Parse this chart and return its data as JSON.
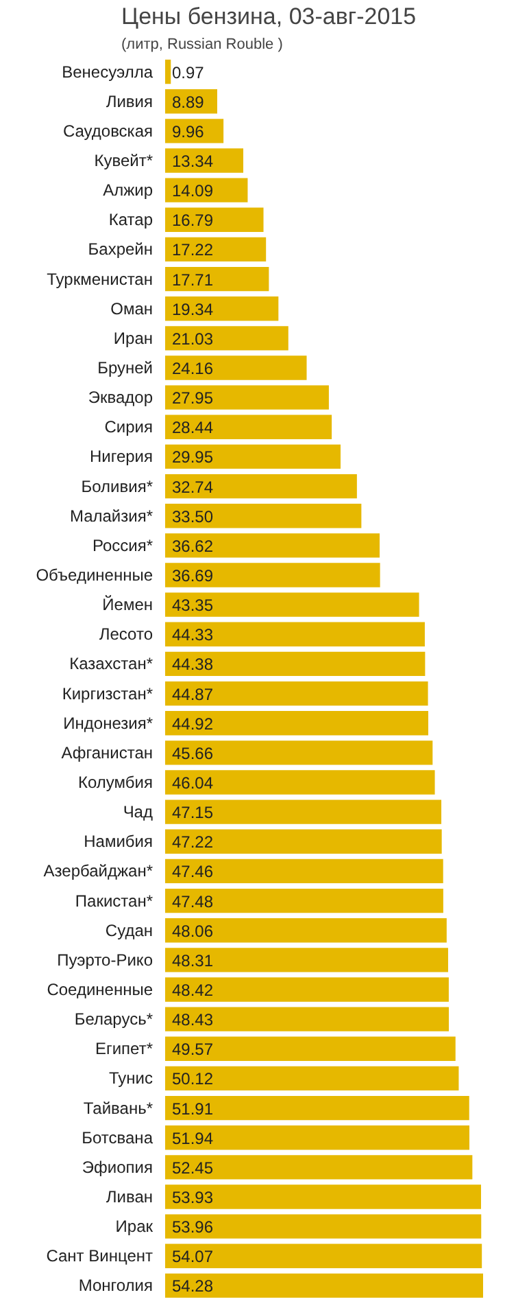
{
  "chart_data": {
    "type": "bar",
    "orientation": "horizontal",
    "title": "Цены бензина, 03-авг-2015",
    "subtitle": "(литр, Russian Rouble )",
    "grid": false,
    "value_labels": [
      "0.97",
      "8.89",
      "9.96",
      "13.34",
      "14.09",
      "16.79",
      "17.22",
      "17.71",
      "19.34",
      "21.03",
      "24.16",
      "27.95",
      "28.44",
      "29.95",
      "32.74",
      "33.50",
      "36.62",
      "36.69",
      "43.35",
      "44.33",
      "44.38",
      "44.87",
      "44.92",
      "45.66",
      "46.04",
      "47.15",
      "47.22",
      "47.46",
      "47.48",
      "48.06",
      "48.31",
      "48.42",
      "48.43",
      "49.57",
      "50.12",
      "51.91",
      "51.94",
      "52.45",
      "53.93",
      "53.96",
      "54.07",
      "54.28"
    ],
    "categories": [
      "Венесуэлла",
      "Ливия",
      "Саудовская",
      "Кувейт*",
      "Алжир",
      "Катар",
      "Бахрейн",
      "Туркменистан",
      "Оман",
      "Иран",
      "Бруней",
      "Эквадор",
      "Сирия",
      "Нигерия",
      "Боливия*",
      "Малайзия*",
      "Россия*",
      "Объединенные",
      "Йемен",
      "Лесото",
      "Казахстан*",
      "Киргизстан*",
      "Индонезия*",
      "Афганистан",
      "Колумбия",
      "Чад",
      "Намибия",
      "Азербайджан*",
      "Пакистан*",
      "Судан",
      "Пуэрто-Рико",
      "Соединенные",
      "Беларусь*",
      "Египет*",
      "Тунис",
      "Тайвань*",
      "Ботсвана",
      "Эфиопия",
      "Ливан",
      "Ирак",
      "Сант Винцент",
      "Монголия"
    ],
    "values": [
      0.97,
      8.89,
      9.96,
      13.34,
      14.09,
      16.79,
      17.22,
      17.71,
      19.34,
      21.03,
      24.16,
      27.95,
      28.44,
      29.95,
      32.74,
      33.5,
      36.62,
      36.69,
      43.35,
      44.33,
      44.38,
      44.87,
      44.92,
      45.66,
      46.04,
      47.15,
      47.22,
      47.46,
      47.48,
      48.06,
      48.31,
      48.42,
      48.43,
      49.57,
      50.12,
      51.91,
      51.94,
      52.45,
      53.93,
      53.96,
      54.07,
      54.28
    ],
    "color": "#e6b800"
  }
}
